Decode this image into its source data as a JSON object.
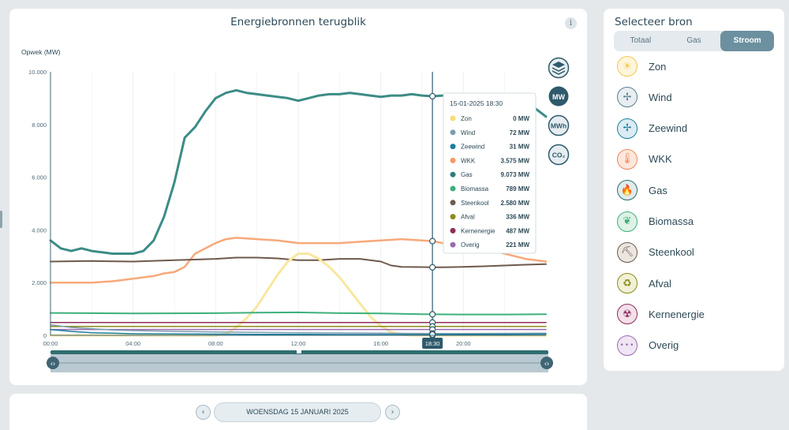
{
  "main": {
    "title": "Energiebronnen terugblik",
    "info_label": "i",
    "units": {
      "mw": "MW",
      "mwh": "MWh",
      "co2": "CO₂"
    }
  },
  "chart_data": {
    "type": "line",
    "ylabel": "Opwek (MW)",
    "ylim": [
      0,
      10000
    ],
    "xlim": [
      0,
      24
    ],
    "yticks": [
      0,
      2000,
      4000,
      6000,
      8000,
      10000
    ],
    "ytick_labels": [
      "0",
      "2.000",
      "4.000",
      "6.000",
      "8.000",
      "10.000"
    ],
    "xticks": [
      0,
      4,
      8,
      12,
      16,
      20
    ],
    "xtick_labels": [
      "00:00",
      "04:00",
      "08:00",
      "12:00",
      "16:00",
      "20:00"
    ],
    "cursor_x": 18.5,
    "cursor_label": "18:30",
    "tooltip": {
      "title": "15-01-2025 18:30",
      "rows": [
        {
          "name": "Zon",
          "value": "0 MW",
          "color": "#f7dd75"
        },
        {
          "name": "Wind",
          "value": "72 MW",
          "color": "#7d9db0"
        },
        {
          "name": "Zeewind",
          "value": "31 MW",
          "color": "#1b7fa0"
        },
        {
          "name": "WKK",
          "value": "3.575 MW",
          "color": "#f59a5f"
        },
        {
          "name": "Gas",
          "value": "9.073 MW",
          "color": "#2e7e78"
        },
        {
          "name": "Biomassa",
          "value": "789 MW",
          "color": "#3db07b"
        },
        {
          "name": "Steenkool",
          "value": "2.580 MW",
          "color": "#6e5a4c"
        },
        {
          "name": "Afval",
          "value": "336 MW",
          "color": "#8b8a1b"
        },
        {
          "name": "Kernenergie",
          "value": "487 MW",
          "color": "#8e2d5c"
        },
        {
          "name": "Overig",
          "value": "221 MW",
          "color": "#9a6bb0"
        }
      ]
    },
    "series": [
      {
        "name": "Gas",
        "color": "#3c8c86",
        "width": 3,
        "x": [
          0,
          0.5,
          1,
          1.5,
          2,
          2.5,
          3,
          3.5,
          4,
          4.5,
          5,
          5.5,
          6,
          6.5,
          7,
          7.5,
          8,
          8.5,
          9,
          9.5,
          10,
          10.5,
          11,
          11.5,
          12,
          12.5,
          13,
          13.5,
          14,
          14.5,
          15,
          15.5,
          16,
          16.5,
          17,
          17.5,
          18,
          18.5,
          19,
          19.5,
          20,
          20.5,
          21,
          21.5,
          22,
          22.5,
          23,
          23.5,
          24
        ],
        "values": [
          3600,
          3300,
          3200,
          3300,
          3200,
          3150,
          3100,
          3100,
          3100,
          3200,
          3600,
          4500,
          5800,
          7500,
          7900,
          8500,
          9000,
          9200,
          9300,
          9200,
          9150,
          9100,
          9050,
          9000,
          8900,
          9000,
          9100,
          9150,
          9150,
          9200,
          9150,
          9100,
          9050,
          9100,
          9100,
          9150,
          9100,
          9073,
          9100,
          9100,
          8900,
          8800,
          8700,
          8800,
          8750,
          8800,
          8700,
          8600,
          8300
        ]
      },
      {
        "name": "WKK",
        "color": "#f7a97a",
        "width": 2.5,
        "x": [
          0,
          1,
          2,
          3,
          3.5,
          4,
          4.5,
          5,
          5.5,
          6,
          6.5,
          7,
          7.5,
          8,
          8.5,
          9,
          10,
          11,
          12,
          13,
          14,
          15,
          16,
          17,
          18,
          18.5,
          19,
          20,
          21,
          22,
          23,
          24
        ],
        "values": [
          2000,
          2000,
          2000,
          2050,
          2100,
          2150,
          2200,
          2250,
          2350,
          2400,
          2600,
          3100,
          3300,
          3500,
          3650,
          3700,
          3650,
          3600,
          3500,
          3500,
          3500,
          3550,
          3600,
          3650,
          3600,
          3575,
          3500,
          3450,
          3300,
          3100,
          2900,
          2800
        ]
      },
      {
        "name": "Steenkool",
        "color": "#6e5a4c",
        "width": 2,
        "x": [
          0,
          2,
          4,
          6,
          8,
          9,
          10,
          11,
          12,
          13,
          14,
          15,
          16,
          16.5,
          17,
          18,
          18.5,
          19,
          20,
          21,
          22,
          23,
          24
        ],
        "values": [
          2800,
          2820,
          2800,
          2850,
          2900,
          2950,
          2950,
          2920,
          2850,
          2850,
          2900,
          2900,
          2800,
          2650,
          2600,
          2590,
          2580,
          2580,
          2600,
          2620,
          2650,
          2680,
          2700
        ]
      },
      {
        "name": "Zon",
        "color": "#f9e79f",
        "width": 3,
        "x": [
          0,
          8,
          8.5,
          9,
          9.5,
          10,
          10.5,
          11,
          11.5,
          12,
          12.5,
          13,
          13.5,
          14,
          14.5,
          15,
          15.5,
          16,
          16.5,
          17,
          17.5,
          18,
          24
        ],
        "values": [
          0,
          0,
          50,
          300,
          650,
          1100,
          1700,
          2300,
          2800,
          3100,
          3100,
          2900,
          2600,
          2200,
          1700,
          1200,
          700,
          350,
          120,
          30,
          0,
          0,
          0
        ]
      },
      {
        "name": "Biomassa",
        "color": "#3db07b",
        "width": 2,
        "x": [
          0,
          4,
          8,
          10,
          12,
          14,
          16,
          18,
          20,
          22,
          24
        ],
        "values": [
          850,
          830,
          840,
          860,
          870,
          840,
          830,
          800,
          789,
          790,
          800
        ]
      },
      {
        "name": "Kernenergie",
        "color": "#8e2d5c",
        "width": 1.5,
        "x": [
          0,
          24
        ],
        "values": [
          487,
          487
        ]
      },
      {
        "name": "Afval",
        "color": "#8b8a1b",
        "width": 1.5,
        "x": [
          0,
          24
        ],
        "values": [
          336,
          336
        ]
      },
      {
        "name": "Overig",
        "color": "#9a6bb0",
        "width": 1.5,
        "x": [
          0,
          24
        ],
        "values": [
          221,
          221
        ]
      },
      {
        "name": "Wind",
        "color": "#7d9db0",
        "width": 1.5,
        "x": [
          0,
          1,
          2,
          3,
          4,
          6,
          8,
          10,
          12,
          14,
          16,
          18,
          20,
          22,
          24
        ],
        "values": [
          400,
          300,
          250,
          200,
          180,
          150,
          130,
          110,
          100,
          90,
          80,
          72,
          70,
          75,
          80
        ]
      },
      {
        "name": "Zeewind",
        "color": "#1b7fa0",
        "width": 1.5,
        "x": [
          0,
          1,
          2,
          3,
          4,
          6,
          8,
          10,
          12,
          14,
          16,
          18,
          20,
          22,
          24
        ],
        "values": [
          220,
          150,
          100,
          80,
          60,
          50,
          45,
          40,
          35,
          30,
          30,
          31,
          35,
          40,
          45
        ]
      }
    ]
  },
  "sidebar": {
    "title": "Selecteer bron",
    "tabs": [
      "Totaal",
      "Gas",
      "Stroom"
    ],
    "active_tab": "Stroom",
    "sources": [
      {
        "label": "Zon",
        "icon": "sun-icon",
        "glyph": "☀",
        "color": "#f2c94c",
        "bg": "#fdf5dc"
      },
      {
        "label": "Wind",
        "icon": "wind-turbine-icon",
        "glyph": "✢",
        "color": "#5b7d90",
        "bg": "#e8eef2"
      },
      {
        "label": "Zeewind",
        "icon": "offshore-wind-icon",
        "glyph": "✢",
        "color": "#1b7fa0",
        "bg": "#dcecf2"
      },
      {
        "label": "WKK",
        "icon": "thermometer-icon",
        "glyph": "🌡",
        "color": "#f0885a",
        "bg": "#fde7dc"
      },
      {
        "label": "Gas",
        "icon": "flame-icon",
        "glyph": "🔥",
        "color": "#2e6e70",
        "bg": "#dfeceb"
      },
      {
        "label": "Biomassa",
        "icon": "leaf-icon",
        "glyph": "❦",
        "color": "#3db07b",
        "bg": "#def2e7"
      },
      {
        "label": "Steenkool",
        "icon": "coal-cart-icon",
        "glyph": "⛏",
        "color": "#6e5a4c",
        "bg": "#ece6e1"
      },
      {
        "label": "Afval",
        "icon": "waste-bin-icon",
        "glyph": "♻",
        "color": "#8b8a1b",
        "bg": "#f1f1d8"
      },
      {
        "label": "Kernenergie",
        "icon": "radiation-icon",
        "glyph": "☢",
        "color": "#8e2d5c",
        "bg": "#f3e0e9"
      },
      {
        "label": "Overig",
        "icon": "dots-icon",
        "glyph": "•••",
        "color": "#9a6bb0",
        "bg": "#efe5f3"
      }
    ]
  },
  "footer": {
    "date_label": "WOENSDAG 15 JANUARI 2025",
    "prev_glyph": "‹",
    "next_glyph": "›"
  }
}
